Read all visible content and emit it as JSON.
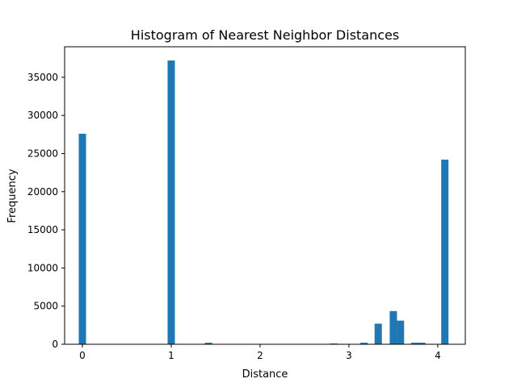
{
  "chart_data": {
    "type": "bar",
    "title": "Histogram of Nearest Neighbor Distances",
    "xlabel": "Distance",
    "ylabel": "Frequency",
    "xlim": [
      -0.2,
      4.31
    ],
    "ylim": [
      0,
      39000
    ],
    "xticks": [
      0,
      1,
      2,
      3,
      4
    ],
    "yticks": [
      0,
      5000,
      10000,
      15000,
      20000,
      25000,
      30000,
      35000
    ],
    "bin_width": 0.082,
    "bins": [
      {
        "x": 0.0,
        "value": 27600
      },
      {
        "x": 1.0,
        "value": 37200
      },
      {
        "x": 1.42,
        "value": 200
      },
      {
        "x": 2.83,
        "value": 100
      },
      {
        "x": 3.17,
        "value": 200
      },
      {
        "x": 3.33,
        "value": 2700
      },
      {
        "x": 3.5,
        "value": 4350
      },
      {
        "x": 3.58,
        "value": 3100
      },
      {
        "x": 3.74,
        "value": 200
      },
      {
        "x": 3.82,
        "value": 200
      },
      {
        "x": 4.08,
        "value": 24200
      }
    ],
    "bar_color": "#1f77b4",
    "grid": false,
    "legend": "none"
  }
}
